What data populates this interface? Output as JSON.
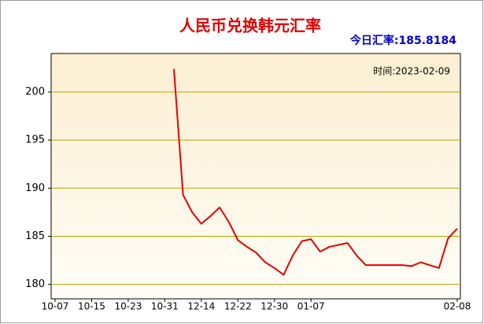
{
  "chart_data": {
    "type": "line",
    "title": "人民币兑换韩元汇率",
    "subtitle": "今日汇率:185.8184",
    "annotation": "时间:2023-02-09",
    "categories": [
      "10-07",
      null,
      null,
      null,
      "10-15",
      null,
      null,
      null,
      "10-23",
      null,
      null,
      null,
      "10-31",
      null,
      null,
      null,
      "12-14",
      null,
      null,
      null,
      "12-22",
      null,
      null,
      null,
      "12-30",
      null,
      null,
      null,
      "01-07",
      null,
      null,
      null,
      null,
      null,
      null,
      null,
      null,
      null,
      null,
      null,
      null,
      null,
      null,
      null,
      "02-08"
    ],
    "series": [
      {
        "color": "#e60000",
        "values": [
          null,
          null,
          null,
          null,
          null,
          null,
          null,
          null,
          null,
          null,
          null,
          null,
          null,
          202.4,
          189.3,
          187.5,
          186.3,
          187.1,
          188.0,
          186.5,
          184.6,
          183.9,
          183.3,
          182.3,
          181.7,
          181.0,
          183.0,
          184.5,
          184.7,
          183.4,
          183.9,
          184.1,
          184.3,
          183.0,
          182.0,
          182.0,
          182.0,
          182.0,
          182.0,
          181.9,
          182.3,
          182.0,
          181.7,
          184.8,
          185.8
        ]
      }
    ],
    "ylim": [
      178.5,
      204
    ],
    "yticks": [
      180,
      185,
      190,
      195,
      200
    ],
    "grid": true
  }
}
